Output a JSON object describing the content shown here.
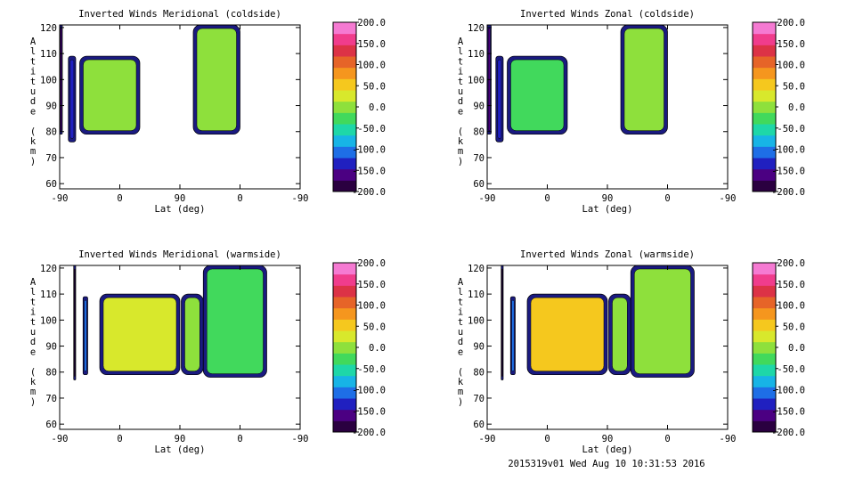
{
  "footer": "2015319v01 Wed Aug 10 10:31:53 2016",
  "chart_data": [
    {
      "type": "heatmap",
      "title": "Inverted Winds Meridional (coldside)",
      "xlabel": "Lat (deg)",
      "ylabel": "Altitude (km)",
      "xticks": [
        "-90",
        "0",
        "90",
        "0",
        "-90"
      ],
      "yticks": [
        "60",
        "70",
        "80",
        "90",
        "100",
        "110",
        "120"
      ],
      "ylim": [
        58,
        121
      ],
      "colorbar": {
        "range": [
          -200,
          200
        ],
        "ticks": [
          "200.0",
          "150.0",
          "100.0",
          "50.0",
          "0.0",
          "-50.0",
          "-100.0",
          "-150.0",
          "-200.0"
        ],
        "colors": [
          "#2a0040",
          "#4b0082",
          "#2020c0",
          "#1e6ee6",
          "#17b4e6",
          "#1ed7a8",
          "#41d95c",
          "#8ee03c",
          "#d8e82c",
          "#f5c81e",
          "#f5961e",
          "#e66428",
          "#dc3246",
          "#f03c8c",
          "#f57ad2"
        ]
      },
      "regions": [
        {
          "lat0": -90,
          "lat1": -86,
          "alt0": 79,
          "alt1": 121,
          "value": -170
        },
        {
          "lat0": -77,
          "lat1": -66,
          "alt0": 76,
          "alt1": 109,
          "value": -130
        },
        {
          "lat0": -60,
          "lat1": 30,
          "alt0": 79,
          "alt1": 109,
          "value": 10
        },
        {
          "lat0": 110,
          "lat1": 180,
          "alt0": 79,
          "alt1": 121,
          "value": -10
        }
      ]
    },
    {
      "type": "heatmap",
      "title": "Inverted Winds Zonal (coldside)",
      "xlabel": "Lat (deg)",
      "ylabel": "Altitude (km)",
      "xticks": [
        "-90",
        "0",
        "90",
        "0",
        "-90"
      ],
      "yticks": [
        "60",
        "70",
        "80",
        "90",
        "100",
        "110",
        "120"
      ],
      "ylim": [
        58,
        121
      ],
      "colorbar": {
        "range": [
          -200,
          200
        ],
        "ticks": [
          "200.0",
          "150.0",
          "100.0",
          "50.0",
          "0.0",
          "-50.0",
          "-100.0",
          "-150.0",
          "-200.0"
        ],
        "colors": [
          "#2a0040",
          "#4b0082",
          "#2020c0",
          "#1e6ee6",
          "#17b4e6",
          "#1ed7a8",
          "#41d95c",
          "#8ee03c",
          "#d8e82c",
          "#f5c81e",
          "#f5961e",
          "#e66428",
          "#dc3246",
          "#f03c8c",
          "#f57ad2"
        ]
      },
      "regions": [
        {
          "lat0": -90,
          "lat1": -84,
          "alt0": 79,
          "alt1": 121,
          "value": -150
        },
        {
          "lat0": -77,
          "lat1": -66,
          "alt0": 76,
          "alt1": 109,
          "value": -130
        },
        {
          "lat0": -60,
          "lat1": 30,
          "alt0": 79,
          "alt1": 109,
          "value": -20
        },
        {
          "lat0": 110,
          "lat1": 180,
          "alt0": 79,
          "alt1": 121,
          "value": 0
        }
      ]
    },
    {
      "type": "heatmap",
      "title": "Inverted Winds Meridional (warmside)",
      "xlabel": "Lat (deg)",
      "ylabel": "Altitude (km)",
      "xticks": [
        "-90",
        "0",
        "90",
        "0",
        "-90"
      ],
      "yticks": [
        "60",
        "70",
        "80",
        "90",
        "100",
        "110",
        "120"
      ],
      "ylim": [
        58,
        121
      ],
      "colorbar": {
        "range": [
          -200,
          200
        ],
        "ticks": [
          "200.0",
          "150.0",
          "100.0",
          "50.0",
          "0.0",
          "-50.0",
          "-100.0",
          "-150.0",
          "-200.0"
        ],
        "colors": [
          "#2a0040",
          "#4b0082",
          "#2020c0",
          "#1e6ee6",
          "#17b4e6",
          "#1ed7a8",
          "#41d95c",
          "#8ee03c",
          "#d8e82c",
          "#f5c81e",
          "#f5961e",
          "#e66428",
          "#dc3246",
          "#f03c8c",
          "#f57ad2"
        ]
      },
      "regions": [
        {
          "lat0": -69,
          "lat1": -66,
          "alt0": 77,
          "alt1": 121,
          "value": -200
        },
        {
          "lat0": -55,
          "lat1": -48,
          "alt0": 79,
          "alt1": 109,
          "value": -120
        },
        {
          "lat0": -30,
          "lat1": 90,
          "alt0": 79,
          "alt1": 110,
          "value": 20
        },
        {
          "lat0": 92,
          "lat1": 125,
          "alt0": 79,
          "alt1": 110,
          "value": -10
        },
        {
          "lat0": 125,
          "lat1": 220,
          "alt0": 78,
          "alt1": 121,
          "value": -20
        }
      ]
    },
    {
      "type": "heatmap",
      "title": "Inverted Winds Zonal (warmside)",
      "xlabel": "Lat (deg)",
      "ylabel": "Altitude (km)",
      "xticks": [
        "-90",
        "0",
        "90",
        "0",
        "-90"
      ],
      "yticks": [
        "60",
        "70",
        "80",
        "90",
        "100",
        "110",
        "120"
      ],
      "ylim": [
        58,
        121
      ],
      "colorbar": {
        "range": [
          -200,
          200
        ],
        "ticks": [
          "200.0",
          "150.0",
          "100.0",
          "50.0",
          "0.0",
          "-50.0",
          "-100.0",
          "-150.0",
          "-200.0"
        ],
        "colors": [
          "#2a0040",
          "#4b0082",
          "#2020c0",
          "#1e6ee6",
          "#17b4e6",
          "#1ed7a8",
          "#41d95c",
          "#8ee03c",
          "#d8e82c",
          "#f5c81e",
          "#f5961e",
          "#e66428",
          "#dc3246",
          "#f03c8c",
          "#f57ad2"
        ]
      },
      "regions": [
        {
          "lat0": -69,
          "lat1": -66,
          "alt0": 77,
          "alt1": 121,
          "value": -200
        },
        {
          "lat0": -55,
          "lat1": -48,
          "alt0": 79,
          "alt1": 109,
          "value": -120
        },
        {
          "lat0": -30,
          "lat1": 90,
          "alt0": 79,
          "alt1": 110,
          "value": 40
        },
        {
          "lat0": 92,
          "lat1": 125,
          "alt0": 79,
          "alt1": 110,
          "value": 10
        },
        {
          "lat0": 125,
          "lat1": 220,
          "alt0": 78,
          "alt1": 121,
          "value": 0
        }
      ]
    }
  ]
}
